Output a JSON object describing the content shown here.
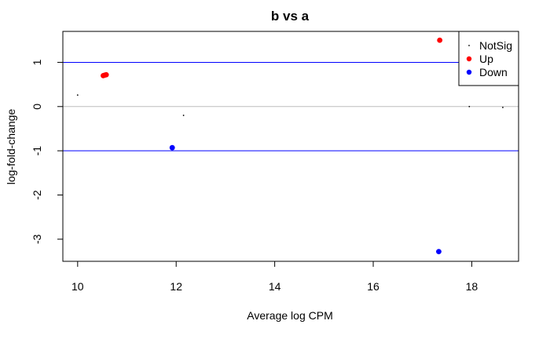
{
  "chart_data": {
    "type": "scatter",
    "title": "b vs a",
    "xlabel": "Average log CPM",
    "ylabel": "log-fold-change",
    "xlim": [
      9.7,
      18.95
    ],
    "ylim": [
      -3.5,
      1.7
    ],
    "x_ticks": [
      {
        "value": 10,
        "label": "10"
      },
      {
        "value": 12,
        "label": "12"
      },
      {
        "value": 14,
        "label": "14"
      },
      {
        "value": 16,
        "label": "16"
      },
      {
        "value": 18,
        "label": "18"
      }
    ],
    "y_ticks": [
      {
        "value": 1,
        "label": "1"
      },
      {
        "value": 0,
        "label": "0"
      },
      {
        "value": -1,
        "label": "-1"
      },
      {
        "value": -2,
        "label": "-2"
      },
      {
        "value": -3,
        "label": "-3"
      }
    ],
    "reference_lines": [
      {
        "y": 1,
        "color": "#0000ff"
      },
      {
        "y": 0,
        "color": "#bebebe"
      },
      {
        "y": -1,
        "color": "#0000ff"
      }
    ],
    "series": [
      {
        "name": "NotSig",
        "color": "#000000",
        "marker": "dot",
        "points": [
          [
            10.0,
            0.26
          ],
          [
            12.15,
            -0.2
          ],
          [
            17.95,
            0.0
          ],
          [
            18.63,
            -0.02
          ]
        ]
      },
      {
        "name": "Up",
        "color": "#ff0000",
        "marker": "circle",
        "points": [
          [
            10.52,
            0.7
          ],
          [
            10.55,
            0.71
          ],
          [
            10.58,
            0.72
          ],
          [
            17.35,
            1.5
          ]
        ]
      },
      {
        "name": "Down",
        "color": "#0000ff",
        "marker": "circle",
        "points": [
          [
            11.92,
            -0.93
          ],
          [
            17.33,
            -3.28
          ]
        ]
      }
    ],
    "legend_position": "top-right",
    "grid": false
  }
}
